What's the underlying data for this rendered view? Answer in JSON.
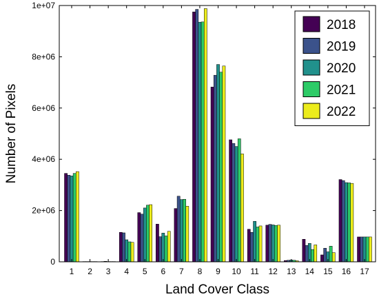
{
  "chart_data": {
    "type": "bar",
    "title": "",
    "xlabel": "Land Cover Class",
    "ylabel": "Number of Pixels",
    "ylim": [
      0,
      10000000
    ],
    "yticks": [
      0,
      2000000,
      4000000,
      6000000,
      8000000,
      10000000
    ],
    "ytick_labels": [
      "0",
      "2e+06",
      "4e+06",
      "6e+06",
      "8e+06",
      "1e+07"
    ],
    "categories": [
      "1",
      "2",
      "3",
      "4",
      "5",
      "6",
      "7",
      "8",
      "9",
      "10",
      "11",
      "12",
      "13",
      "14",
      "15",
      "16",
      "17"
    ],
    "legend_position": "top-right",
    "grid": false,
    "series": [
      {
        "name": "2018",
        "color": "#440154",
        "values": [
          3450000,
          10000,
          10000,
          1150000,
          1920000,
          1470000,
          2080000,
          9750000,
          6820000,
          4760000,
          1270000,
          1430000,
          50000,
          880000,
          270000,
          3210000,
          970000
        ]
      },
      {
        "name": "2019",
        "color": "#3b528b",
        "values": [
          3380000,
          10000,
          20000,
          1130000,
          1860000,
          980000,
          2560000,
          9850000,
          7280000,
          4620000,
          1150000,
          1460000,
          60000,
          640000,
          530000,
          3170000,
          970000
        ]
      },
      {
        "name": "2020",
        "color": "#21918c",
        "values": [
          3350000,
          10000,
          10000,
          860000,
          2100000,
          1120000,
          2430000,
          9350000,
          7700000,
          4500000,
          1580000,
          1440000,
          70000,
          720000,
          390000,
          3090000,
          970000
        ]
      },
      {
        "name": "2021",
        "color": "#2dcb67",
        "values": [
          3450000,
          10000,
          10000,
          780000,
          2210000,
          1010000,
          2440000,
          9360000,
          7400000,
          4800000,
          1360000,
          1420000,
          60000,
          480000,
          610000,
          3080000,
          970000
        ]
      },
      {
        "name": "2022",
        "color": "#ecec1c",
        "values": [
          3520000,
          10000,
          10000,
          760000,
          2230000,
          1190000,
          2170000,
          9880000,
          7640000,
          4210000,
          1400000,
          1430000,
          40000,
          660000,
          360000,
          3060000,
          970000
        ]
      }
    ]
  }
}
